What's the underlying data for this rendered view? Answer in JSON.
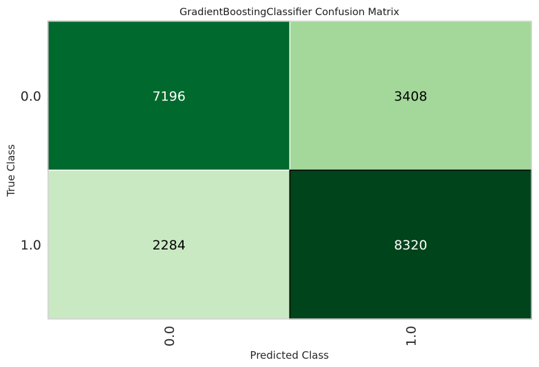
{
  "chart_data": {
    "type": "heatmap",
    "title": "GradientBoostingClassifier Confusion Matrix",
    "xlabel": "Predicted Class",
    "ylabel": "True Class",
    "x_categories": [
      "0.0",
      "1.0"
    ],
    "y_categories": [
      "0.0",
      "1.0"
    ],
    "values": [
      [
        7196,
        3408
      ],
      [
        2284,
        8320
      ]
    ],
    "colormap": "Greens",
    "colors": {
      "cells": [
        [
          "#00692d",
          "#a3d89a"
        ],
        [
          "#c9e9c2",
          "#00441b"
        ]
      ],
      "text": [
        [
          "#ffffff",
          "#000000"
        ],
        [
          "#000000",
          "#ffffff"
        ]
      ],
      "frame": "#cccccc"
    },
    "grid": false
  }
}
